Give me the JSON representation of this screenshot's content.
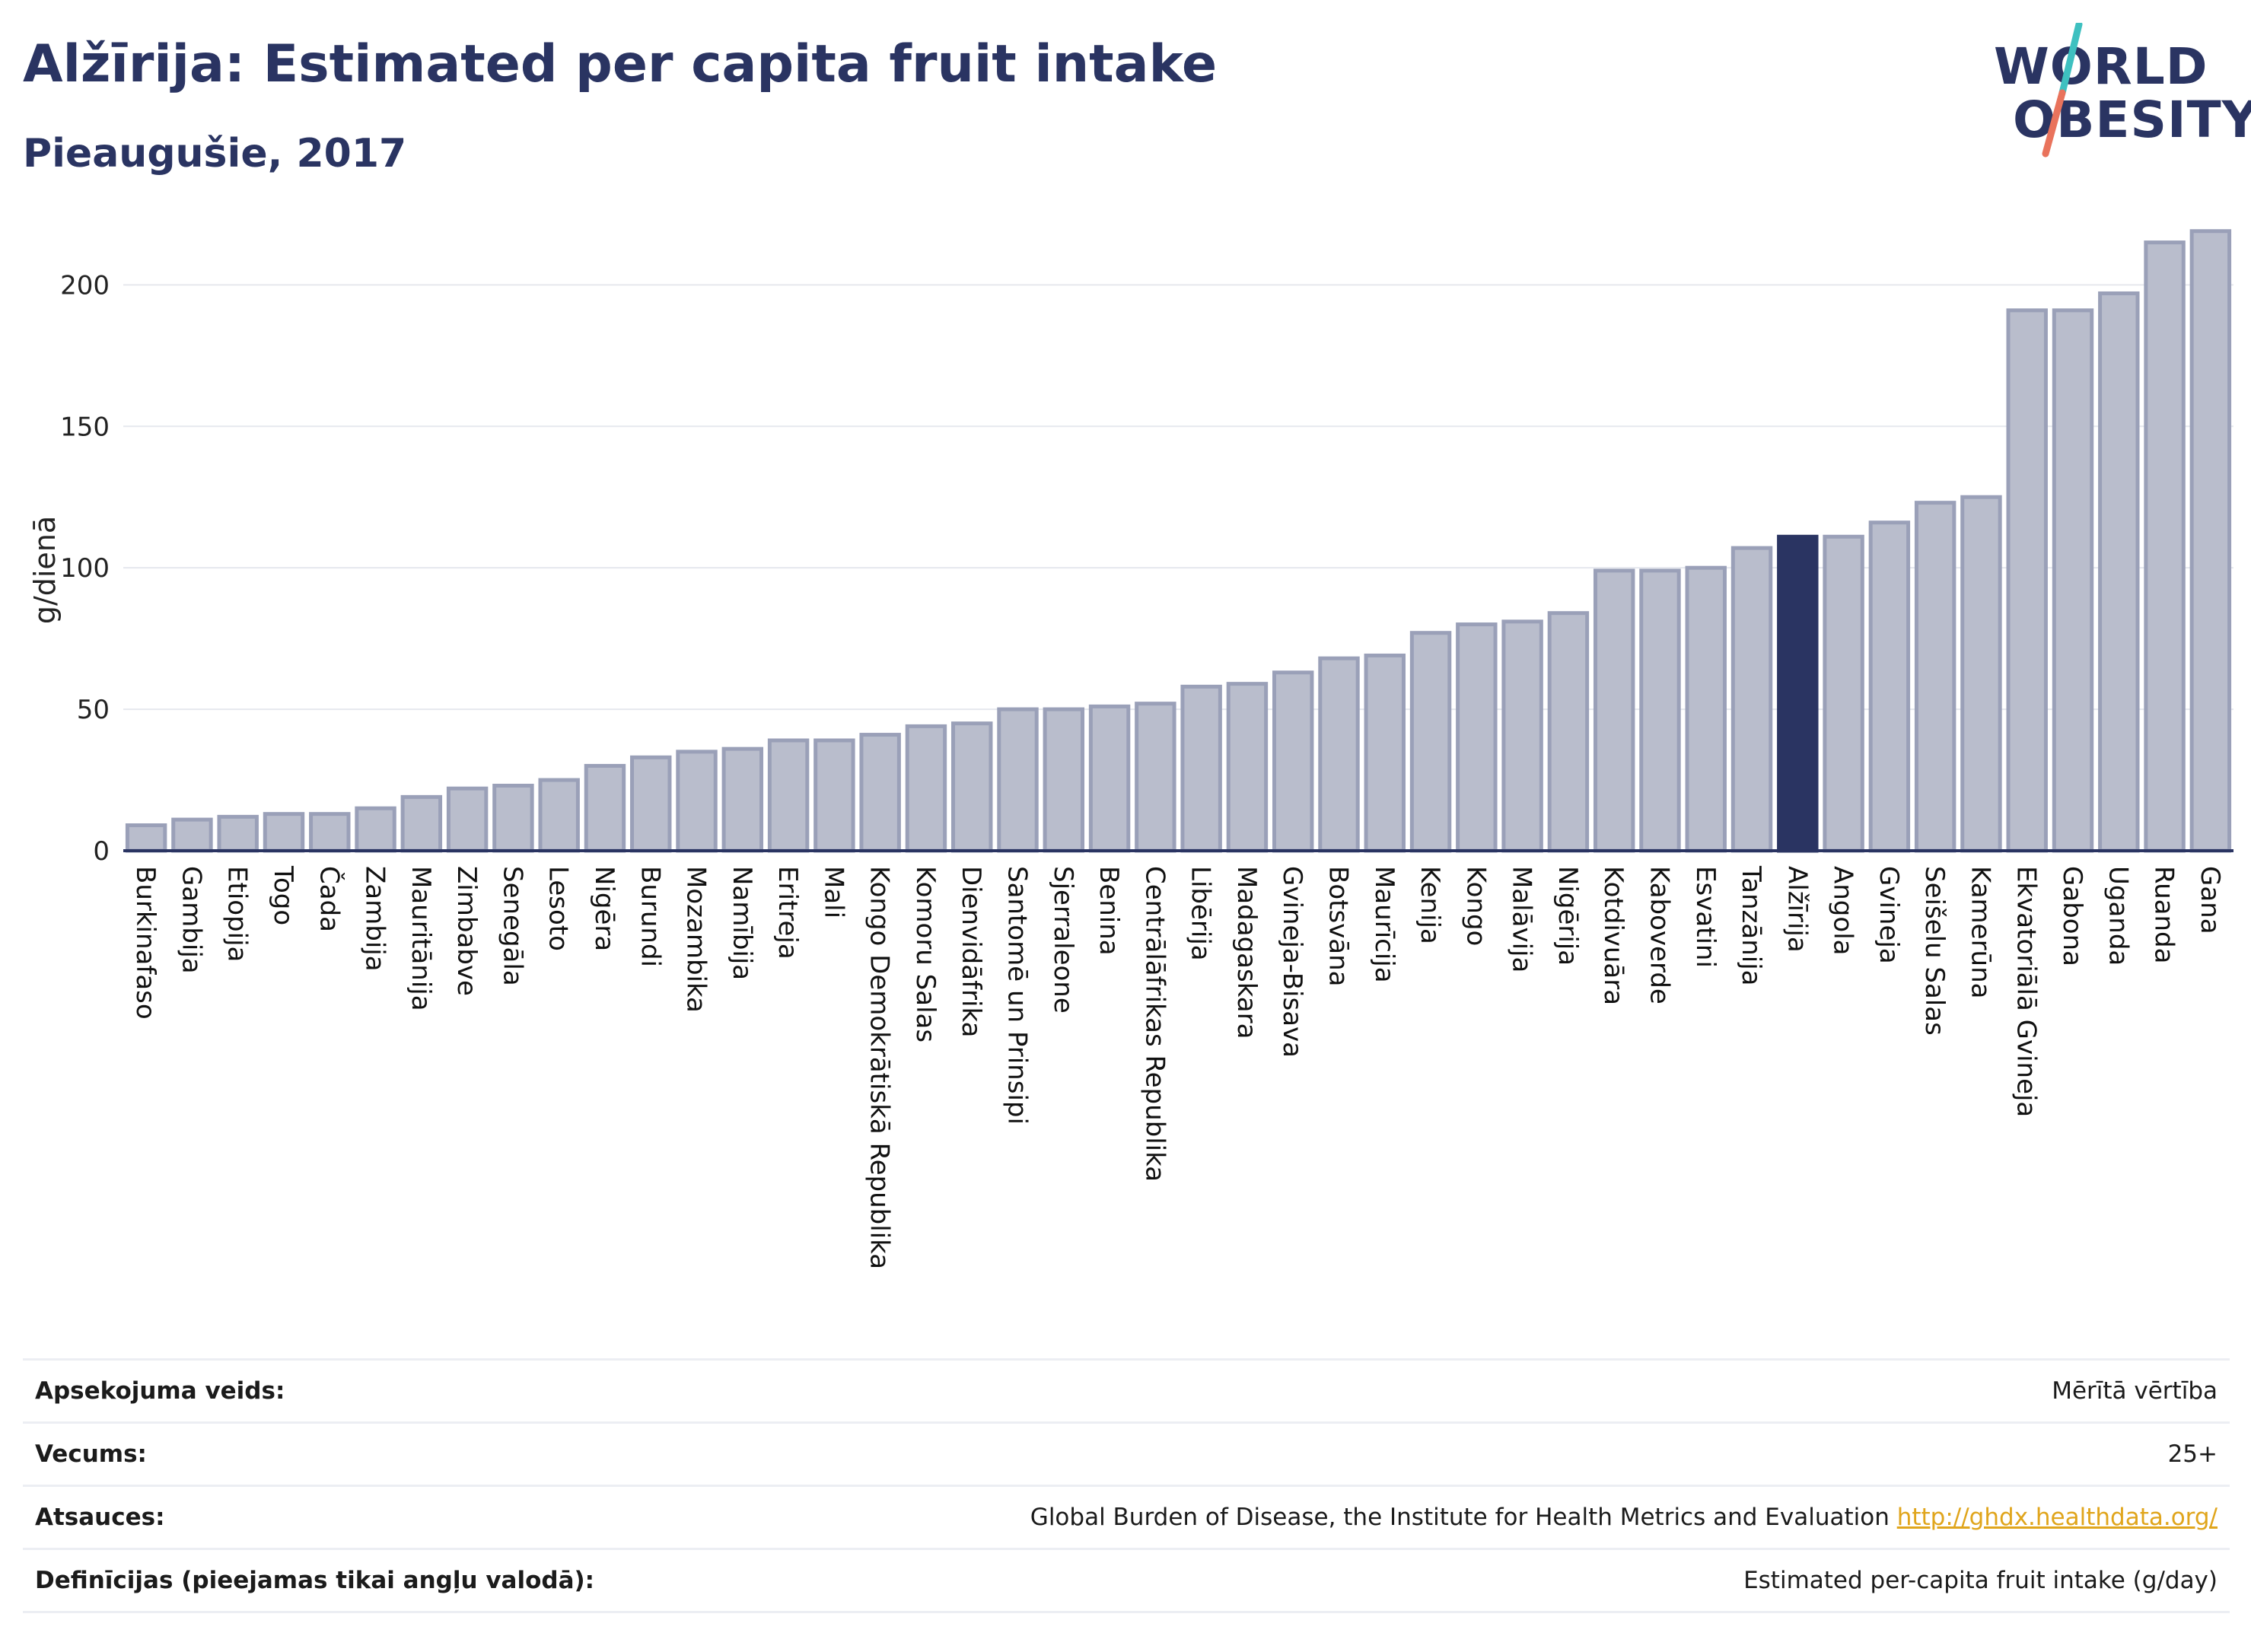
{
  "header": {
    "title": "Alžīrija: Estimated per capita fruit intake",
    "subtitle": "Pieaugušie, 2017"
  },
  "logo": {
    "line1": "WORLD",
    "line2": "OBESITY"
  },
  "colors": {
    "bar": "#b9bdcc",
    "bar_stroke": "#9aa0b8",
    "highlight": "#2a3462",
    "text": "#2a3462",
    "grid": "#e6e8ee",
    "logo_teal": "#3ec0c0",
    "logo_coral": "#e9735c"
  },
  "chart_data": {
    "type": "bar",
    "ylabel": "g/dienā",
    "ylim": [
      0,
      220
    ],
    "yticks": [
      0,
      50,
      100,
      150,
      200
    ],
    "grid": true,
    "highlight": "Alžīrija",
    "categories": [
      "Burkinafaso",
      "Gambija",
      "Etiopija",
      "Togo",
      "Čada",
      "Zambija",
      "Mauritānija",
      "Zimbabve",
      "Senegāla",
      "Lesoto",
      "Nigēra",
      "Burundi",
      "Mozambika",
      "Namībija",
      "Eritreja",
      "Mali",
      "Kongo Demokrātiskā Republika",
      "Komoru Salas",
      "Dienvidāfrika",
      "Santomē un Prinsipi",
      "Sjerraleone",
      "Benina",
      "Centrālāfrikas Republika",
      "Libērija",
      "Madagaskara",
      "Gvineja-Bisava",
      "Botsvāna",
      "Maurīcija",
      "Kenija",
      "Kongo",
      "Malāvija",
      "Nigērija",
      "Kotdivuāra",
      "Kaboverde",
      "Esvatini",
      "Tanzānija",
      "Alžīrija",
      "Angola",
      "Gvineja",
      "Seišelu Salas",
      "Kamerūna",
      "Ekvatoriālā Gvineja",
      "Gabona",
      "Uganda",
      "Ruanda",
      "Gana"
    ],
    "values": [
      9,
      11,
      12,
      13,
      13,
      15,
      19,
      22,
      23,
      25,
      30,
      33,
      35,
      36,
      39,
      39,
      41,
      44,
      45,
      50,
      50,
      51,
      52,
      58,
      59,
      63,
      68,
      69,
      77,
      80,
      81,
      84,
      99,
      99,
      100,
      107,
      111,
      111,
      116,
      123,
      125,
      191,
      191,
      197,
      215,
      219
    ]
  },
  "footer": {
    "rows": [
      {
        "label": "Apsekojuma veids:",
        "value": "Mērītā vērtība"
      },
      {
        "label": "Vecums:",
        "value": "25+"
      },
      {
        "label": "Atsauces:",
        "value": "Global Burden of Disease, the Institute for Health Metrics and Evaluation",
        "link": "http://ghdx.healthdata.org/"
      },
      {
        "label": "Definīcijas (pieejamas tikai angļu valodā):",
        "value": "Estimated per-capita fruit intake (g/day)"
      }
    ]
  }
}
